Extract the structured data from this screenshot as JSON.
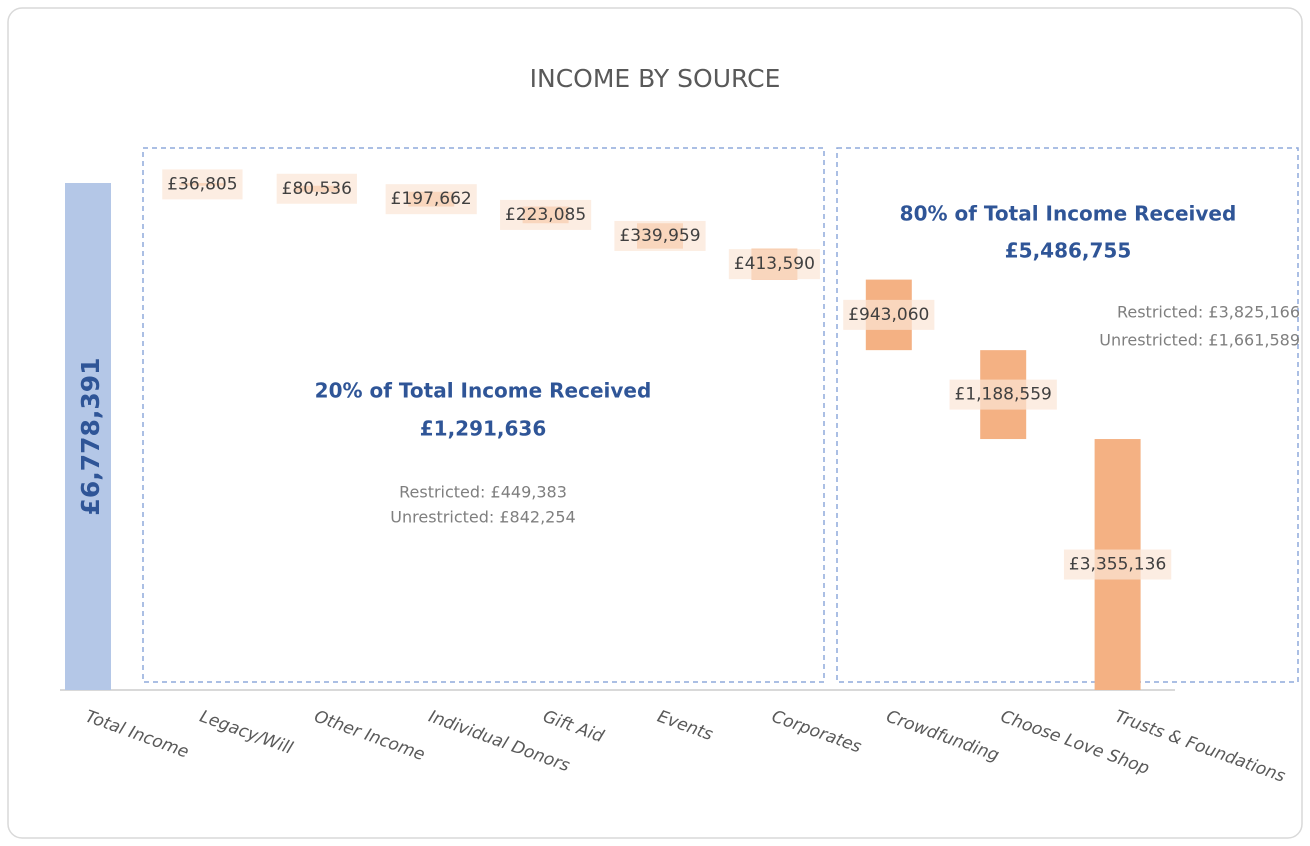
{
  "chart_data": {
    "type": "waterfall",
    "title": "INCOME BY SOURCE",
    "categories": [
      "Total Income",
      "Legacy/Will",
      "Other Income",
      "Individual Donors",
      "Gift Aid",
      "Events",
      "Corporates",
      "Crowdfunding",
      "Choose Love Shop",
      "Trusts & Foundations"
    ],
    "values": [
      6778391,
      36805,
      80536,
      197662,
      223085,
      339959,
      413590,
      943060,
      1188559,
      3355136
    ],
    "value_labels": [
      "£6,778,391",
      "£36,805",
      "£80,536",
      "£197,662",
      "£223,085",
      "£339,959",
      "£413,590",
      "£943,060",
      "£1,188,559",
      "£3,355,136"
    ],
    "total_color": "#b4c7e7",
    "color": "#f4b183",
    "ylim": [
      0,
      6778391
    ],
    "annotations": [
      {
        "heading": "20% of Total Income Received",
        "amount": "£1,291,636",
        "restricted": "Restricted: £449,383",
        "unrestricted": "Unrestricted: £842,254"
      },
      {
        "heading": "80% of Total Income Received",
        "amount": "£5,486,755",
        "restricted": "Restricted: £3,825,166",
        "unrestricted": "Unrestricted: £1,661,589"
      }
    ]
  }
}
